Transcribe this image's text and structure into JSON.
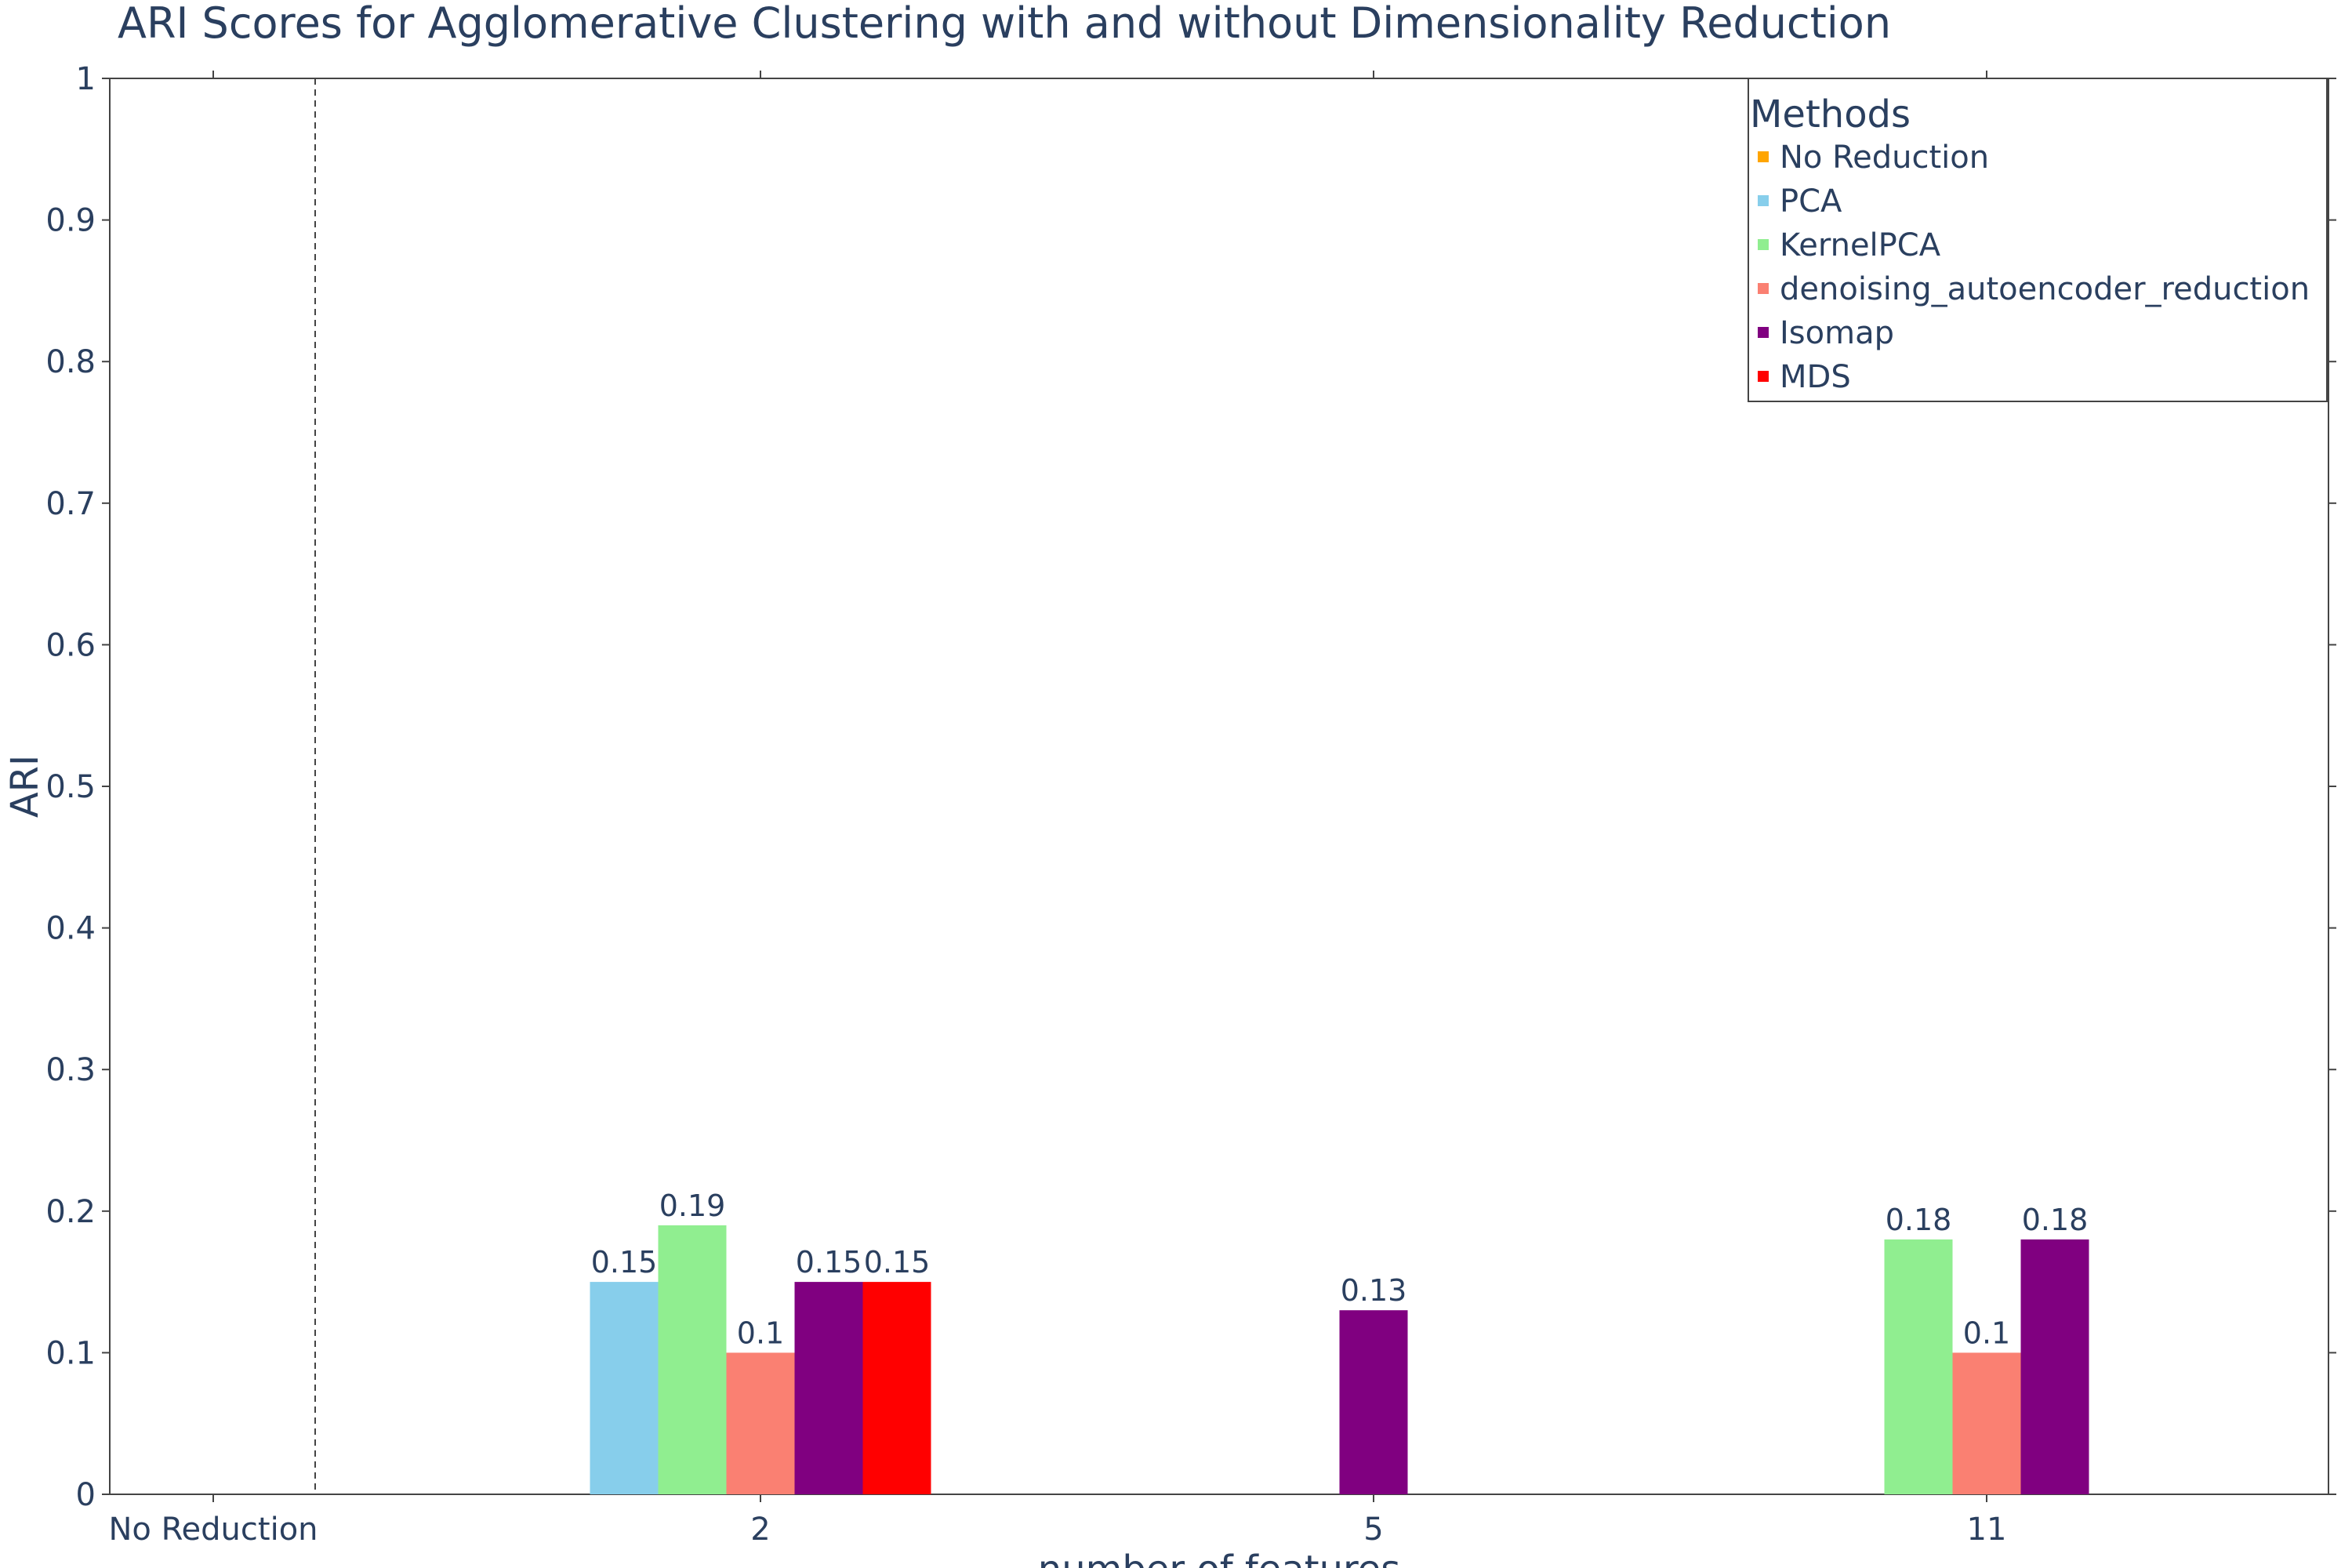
{
  "chart_data": {
    "type": "bar",
    "title": "ARI Scores for Agglomerative Clustering with and without Dimensionality Reduction",
    "xlabel": "number of features",
    "ylabel": "ARI",
    "ylim": [
      0,
      1
    ],
    "yticks": [
      "0",
      "0.1",
      "0.2",
      "0.3",
      "0.4",
      "0.5",
      "0.6",
      "0.7",
      "0.8",
      "0.9",
      "1"
    ],
    "categories": [
      "No Reduction",
      "2",
      "5",
      "11"
    ],
    "grid": false,
    "legend": {
      "title": "Methods",
      "placement": "top-right",
      "entries": [
        "No Reduction",
        "PCA",
        "KernelPCA",
        "denoising_autoencoder_reduction",
        "Isomap",
        "MDS"
      ]
    },
    "series": [
      {
        "name": "No Reduction",
        "color": "#FFA500",
        "values": [
          null,
          null,
          null,
          null
        ],
        "labels": [
          null,
          null,
          null,
          null
        ]
      },
      {
        "name": "PCA",
        "color": "#87CEEB",
        "values": [
          null,
          0.15,
          null,
          null
        ],
        "labels": [
          null,
          "0.15",
          null,
          null
        ]
      },
      {
        "name": "KernelPCA",
        "color": "#90EE90",
        "values": [
          null,
          0.19,
          null,
          0.18
        ],
        "labels": [
          null,
          "0.19",
          null,
          "0.18"
        ]
      },
      {
        "name": "denoising_autoencoder_reduction",
        "color": "#FA8072",
        "values": [
          null,
          0.1,
          null,
          0.1
        ],
        "labels": [
          null,
          "0.1",
          null,
          "0.1"
        ]
      },
      {
        "name": "Isomap",
        "color": "#800080",
        "values": [
          null,
          0.15,
          0.13,
          0.18
        ],
        "labels": [
          null,
          "0.15",
          "0.13",
          "0.18"
        ]
      },
      {
        "name": "MDS",
        "color": "#FF0000",
        "values": [
          null,
          0.15,
          null,
          null
        ],
        "labels": [
          null,
          "0.15",
          null,
          null
        ]
      }
    ]
  }
}
